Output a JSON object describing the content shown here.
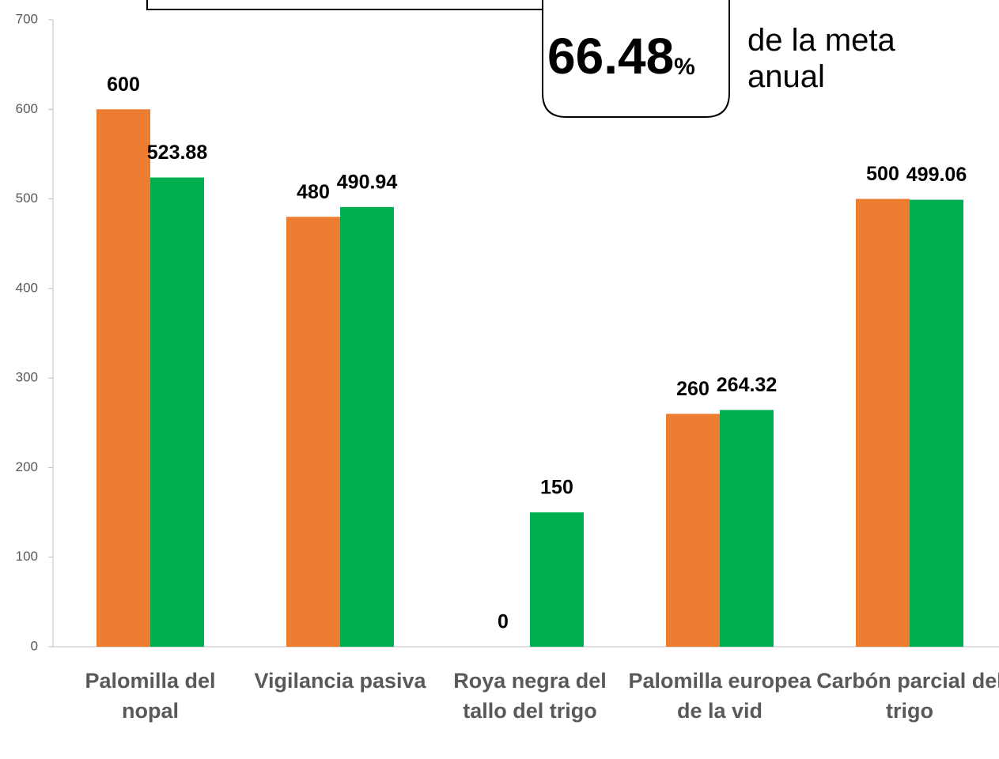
{
  "chart_data": {
    "type": "bar",
    "categories": [
      "Palomilla del nopal",
      "Vigilancia pasiva",
      "Roya negra del tallo del trigo",
      "Palomilla europea de la vid",
      "Carbón parcial del trigo"
    ],
    "series": [
      {
        "color": "#ed7d31",
        "values": [
          600,
          480,
          0,
          260,
          500
        ]
      },
      {
        "color": "#00b050",
        "values": [
          523.88,
          490.94,
          150,
          264.32,
          499.06
        ]
      }
    ],
    "ylim": [
      0,
      700
    ],
    "yticks": [
      0,
      100,
      200,
      300,
      400,
      500,
      600,
      700
    ],
    "annotations": [
      "66.48",
      "%",
      "de la meta anual"
    ]
  }
}
